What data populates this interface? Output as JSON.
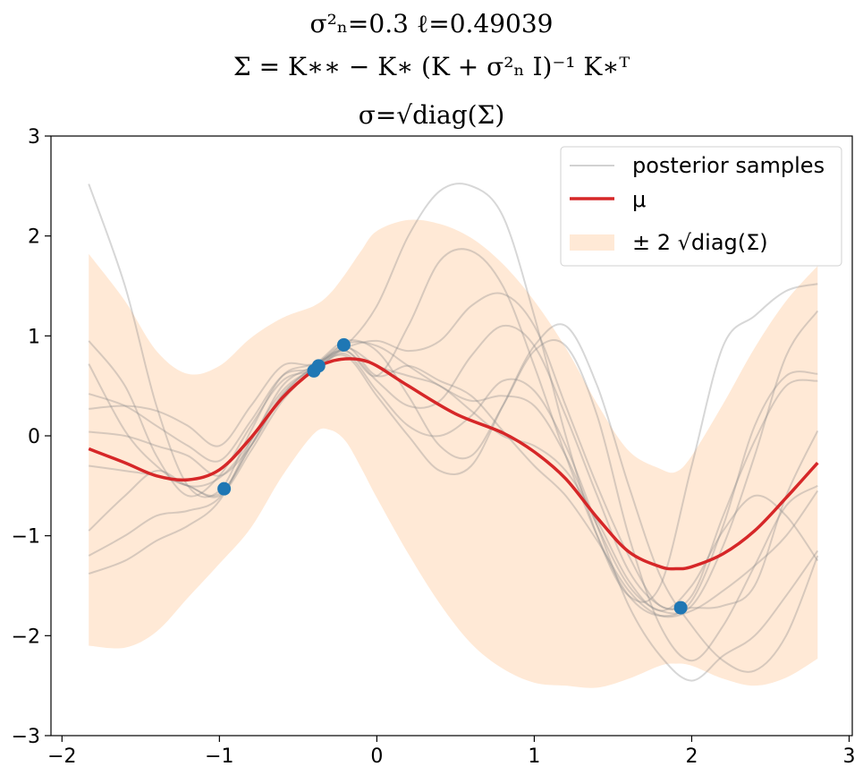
{
  "chart_data": {
    "type": "line",
    "title_lines": [
      "σ²ₙ=0.3   ℓ=0.49039",
      "Σ = K∗∗ − K∗ (K + σ²ₙ I)⁻¹ K∗ᵀ",
      "σ=√diag(Σ)"
    ],
    "xlabel": "",
    "ylabel": "",
    "xlim": [
      -2.07,
      3.02
    ],
    "ylim": [
      -3,
      3
    ],
    "xticks": [
      -2,
      -1,
      0,
      1,
      2,
      3
    ],
    "yticks": [
      -3,
      -2,
      -1,
      0,
      1,
      2,
      3
    ],
    "xtick_labels": [
      "−2",
      "−1",
      "0",
      "1",
      "2",
      "3"
    ],
    "ytick_labels": [
      "−3",
      "−2",
      "−1",
      "0",
      "1",
      "2",
      "3"
    ],
    "grid": false,
    "legend": {
      "placement": "top-right",
      "entries": [
        "posterior samples",
        "μ",
        "± 2 √diag(Σ)"
      ]
    },
    "colors": {
      "mean": "#d62728",
      "band": "#ffe9d6",
      "samples": "#8c8c8c",
      "points": "#1f77b4"
    },
    "observations": {
      "x": [
        -0.97,
        -0.4,
        -0.37,
        -0.21,
        1.93
      ],
      "y": [
        -0.53,
        0.65,
        0.7,
        0.91,
        -1.72
      ]
    },
    "mean": {
      "name": "μ",
      "x": [
        -1.83,
        -1.6,
        -1.4,
        -1.2,
        -1.0,
        -0.8,
        -0.6,
        -0.4,
        -0.3,
        -0.2,
        -0.1,
        0.0,
        0.2,
        0.5,
        0.8,
        1.0,
        1.2,
        1.4,
        1.6,
        1.8,
        1.9,
        2.0,
        2.2,
        2.4,
        2.6,
        2.8
      ],
      "y": [
        -0.13,
        -0.27,
        -0.4,
        -0.44,
        -0.34,
        -0.02,
        0.38,
        0.66,
        0.74,
        0.77,
        0.76,
        0.7,
        0.5,
        0.22,
        0.03,
        -0.16,
        -0.43,
        -0.82,
        -1.16,
        -1.31,
        -1.33,
        -1.31,
        -1.18,
        -0.95,
        -0.62,
        -0.27
      ]
    },
    "band": {
      "name": "± 2 √diag(Σ)",
      "x": [
        -1.83,
        -1.6,
        -1.4,
        -1.2,
        -1.0,
        -0.8,
        -0.6,
        -0.4,
        -0.3,
        -0.2,
        -0.1,
        0.0,
        0.2,
        0.4,
        0.6,
        0.8,
        1.0,
        1.2,
        1.4,
        1.6,
        1.8,
        1.9,
        2.0,
        2.2,
        2.4,
        2.6,
        2.8
      ],
      "upper": [
        1.82,
        1.35,
        0.85,
        0.62,
        0.7,
        0.98,
        1.18,
        1.3,
        1.42,
        1.62,
        1.85,
        2.05,
        2.16,
        2.12,
        1.98,
        1.72,
        1.35,
        0.88,
        0.32,
        -0.15,
        -0.33,
        -0.36,
        -0.2,
        0.32,
        0.88,
        1.35,
        1.7
      ],
      "lower": [
        -2.1,
        -2.12,
        -1.96,
        -1.62,
        -1.28,
        -0.92,
        -0.4,
        0.02,
        0.06,
        -0.05,
        -0.32,
        -0.62,
        -1.18,
        -1.68,
        -2.08,
        -2.33,
        -2.47,
        -2.5,
        -2.52,
        -2.43,
        -2.3,
        -2.28,
        -2.3,
        -2.43,
        -2.5,
        -2.42,
        -2.23
      ]
    },
    "samples": {
      "name": "posterior samples",
      "x": [
        -1.83,
        -1.6,
        -1.4,
        -1.2,
        -1.0,
        -0.8,
        -0.6,
        -0.4,
        -0.2,
        0.0,
        0.2,
        0.4,
        0.6,
        0.8,
        1.0,
        1.2,
        1.4,
        1.6,
        1.8,
        2.0,
        2.2,
        2.4,
        2.6,
        2.8
      ],
      "lines": [
        [
          2.52,
          1.5,
          0.3,
          -0.5,
          -0.55,
          0.05,
          0.6,
          0.72,
          0.9,
          1.3,
          2.0,
          2.45,
          2.5,
          2.2,
          1.2,
          0.0,
          -1.0,
          -1.6,
          -1.5,
          -0.3,
          0.9,
          1.2,
          1.45,
          1.52
        ],
        [
          0.95,
          0.5,
          -0.2,
          -0.6,
          -0.4,
          0.1,
          0.55,
          0.66,
          0.85,
          0.6,
          1.1,
          1.75,
          1.85,
          1.5,
          0.7,
          -0.2,
          -1.0,
          -1.6,
          -1.8,
          -1.65,
          -0.9,
          0.1,
          0.6,
          0.62
        ],
        [
          0.72,
          0.05,
          -0.3,
          -0.5,
          -0.42,
          -0.05,
          0.5,
          0.7,
          0.88,
          0.95,
          0.85,
          0.95,
          1.3,
          1.42,
          1.1,
          0.3,
          -0.5,
          -1.2,
          -1.7,
          -1.6,
          -0.8,
          -0.05,
          0.5,
          0.55
        ],
        [
          0.42,
          0.3,
          0.1,
          -0.1,
          -0.25,
          0.15,
          0.6,
          0.68,
          0.92,
          0.9,
          0.7,
          0.5,
          0.35,
          0.4,
          0.3,
          -0.2,
          -0.9,
          -1.5,
          -1.75,
          -1.7,
          -1.1,
          -0.2,
          0.8,
          1.25
        ],
        [
          0.27,
          0.3,
          0.25,
          0.1,
          -0.1,
          0.3,
          0.7,
          0.72,
          0.95,
          0.85,
          0.4,
          -0.1,
          -0.2,
          0.3,
          0.85,
          0.9,
          0.2,
          -1.0,
          -1.9,
          -2.25,
          -1.9,
          -1.3,
          -0.7,
          -0.5
        ],
        [
          0.04,
          0.0,
          -0.1,
          -0.2,
          -0.4,
          -0.1,
          0.4,
          0.7,
          0.85,
          0.55,
          0.3,
          0.35,
          0.8,
          1.1,
          0.9,
          0.2,
          -0.6,
          -1.35,
          -1.7,
          -1.72,
          -1.7,
          -1.5,
          -0.6,
          0.05
        ],
        [
          -0.3,
          -0.35,
          -0.4,
          -0.5,
          -0.6,
          -0.15,
          0.35,
          0.66,
          0.88,
          0.7,
          0.6,
          0.5,
          0.25,
          0.0,
          -0.1,
          -0.35,
          -0.85,
          -1.45,
          -1.75,
          -1.5,
          -0.95,
          -0.6,
          -0.8,
          -1.25
        ],
        [
          -0.95,
          -0.6,
          -0.35,
          -0.5,
          -0.58,
          -0.1,
          0.42,
          0.68,
          0.9,
          0.6,
          0.7,
          0.55,
          0.4,
          0.05,
          -0.3,
          -0.6,
          -1.05,
          -1.55,
          -1.8,
          -1.75,
          -1.55,
          -1.3,
          -1.0,
          -0.55
        ],
        [
          -1.2,
          -1.0,
          -0.8,
          -0.75,
          -0.62,
          -0.1,
          0.4,
          0.64,
          0.82,
          0.45,
          0.1,
          0.0,
          0.2,
          0.55,
          0.45,
          -0.1,
          -0.9,
          -1.7,
          -2.2,
          -2.45,
          -2.2,
          -2.0,
          -1.6,
          -1.15
        ],
        [
          -1.38,
          -1.25,
          -1.05,
          -0.9,
          -0.65,
          -0.05,
          0.45,
          0.67,
          0.8,
          0.4,
          0.0,
          -0.35,
          -0.3,
          0.3,
          0.9,
          1.1,
          0.5,
          -0.5,
          -1.4,
          -1.9,
          -2.25,
          -2.35,
          -2.0,
          -1.2
        ]
      ]
    }
  }
}
